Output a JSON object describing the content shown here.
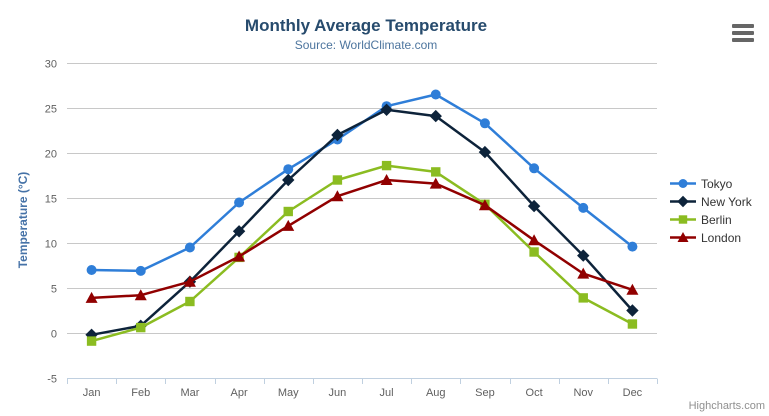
{
  "chart": {
    "credit": "Highcharts.com"
  },
  "chart_data": {
    "type": "line",
    "title": "Monthly Average Temperature",
    "subtitle": "Source: WorldClimate.com",
    "xlabel": "",
    "ylabel": "Temperature (°C)",
    "ylim": [
      -5,
      30
    ],
    "ytick_step": 5,
    "yticks": [
      "-5",
      "0",
      "5",
      "10",
      "15",
      "20",
      "25",
      "30"
    ],
    "grid": true,
    "legend_position": "right-middle",
    "categories": [
      "Jan",
      "Feb",
      "Mar",
      "Apr",
      "May",
      "Jun",
      "Jul",
      "Aug",
      "Sep",
      "Oct",
      "Nov",
      "Dec"
    ],
    "series": [
      {
        "name": "Tokyo",
        "color": "#2f7ed8",
        "marker": "circle",
        "values": [
          7.0,
          6.9,
          9.5,
          14.5,
          18.2,
          21.5,
          25.2,
          26.5,
          23.3,
          18.3,
          13.9,
          9.6
        ]
      },
      {
        "name": "New York",
        "color": "#0d233a",
        "marker": "diamond",
        "values": [
          -0.2,
          0.8,
          5.7,
          11.3,
          17.0,
          22.0,
          24.8,
          24.1,
          20.1,
          14.1,
          8.6,
          2.5
        ]
      },
      {
        "name": "Berlin",
        "color": "#8bbc21",
        "marker": "square",
        "values": [
          -0.9,
          0.6,
          3.5,
          8.4,
          13.5,
          17.0,
          18.6,
          17.9,
          14.3,
          9.0,
          3.9,
          1.0
        ]
      },
      {
        "name": "London",
        "color": "#910000",
        "marker": "triangle",
        "values": [
          3.9,
          4.2,
          5.7,
          8.5,
          11.9,
          15.2,
          17.0,
          16.6,
          14.2,
          10.3,
          6.6,
          4.8
        ]
      }
    ],
    "colors": {
      "title": "#274b6d",
      "subtitle": "#4d759e",
      "axis_title": "#4572a7",
      "axis_labels": "#606060",
      "grid_line": "#c8c8c8",
      "axis_line": "#c0d0e0",
      "legend_text": "#333333",
      "credit": "#909090",
      "menu_icon": "#666666",
      "background": "#ffffff"
    }
  }
}
